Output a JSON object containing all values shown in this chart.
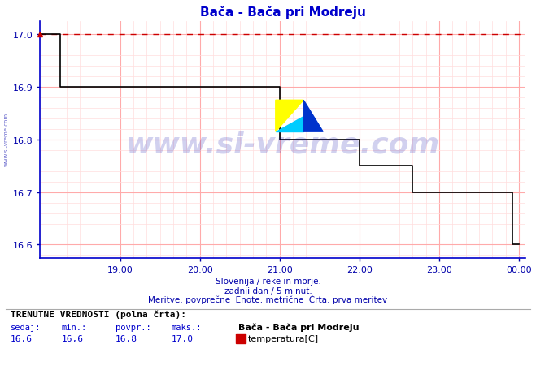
{
  "title": "Bača - Bača pri Modreju",
  "line_color": "#000000",
  "dashed_line_color": "#cc0000",
  "dashed_line_y": 17.0,
  "bg_color": "#ffffff",
  "plot_bg_color": "#ffffff",
  "grid_color_major": "#ffaaaa",
  "grid_color_minor": "#ffdddd",
  "axis_color": "#0000cc",
  "tick_color": "#0000aa",
  "ylim": [
    16.575,
    17.025
  ],
  "yticks": [
    16.6,
    16.7,
    16.8,
    16.9,
    17.0
  ],
  "xtick_labels": [
    "19:00",
    "20:00",
    "21:00",
    "22:00",
    "23:00",
    "00:00"
  ],
  "footer_line1": "Slovenija / reke in morje.",
  "footer_line2": "zadnji dan / 5 minut.",
  "footer_line3": "Meritve: povprečne  Enote: metrične  Črta: prva meritev",
  "footer_color": "#0000aa",
  "label_title": "TRENUTNE VREDNOSTI (polna črta):",
  "label_headers": [
    "sedaj:",
    "min.:",
    "povpr.:",
    "maks.:"
  ],
  "label_values": [
    "16,6",
    "16,6",
    "16,8",
    "17,0"
  ],
  "legend_station": "Bača - Bača pri Modreju",
  "legend_label": "temperatura[C]",
  "legend_color": "#cc0000",
  "watermark": "www.si-vreme.com",
  "watermark_color": "#0000aa",
  "watermark_alpha": 0.18,
  "side_watermark": "www.si-vreme.com",
  "time_x": [
    18.0,
    18.0833,
    18.1667,
    18.25,
    18.3333,
    18.4167,
    18.5,
    18.5833,
    18.6667,
    18.75,
    18.8333,
    18.9167,
    19.0,
    19.0833,
    19.1667,
    19.25,
    19.3333,
    19.4167,
    19.5,
    19.5833,
    19.6667,
    19.75,
    19.8333,
    19.9167,
    20.0,
    20.0833,
    20.1667,
    20.25,
    20.3333,
    20.4167,
    20.5,
    20.5833,
    20.6667,
    20.75,
    20.8333,
    20.9167,
    21.0,
    21.0833,
    21.1667,
    21.25,
    21.3333,
    21.4167,
    21.5,
    21.5833,
    21.6667,
    21.75,
    21.8333,
    21.9167,
    22.0,
    22.0833,
    22.1667,
    22.25,
    22.3333,
    22.4167,
    22.5,
    22.5833,
    22.6667,
    22.75,
    22.8333,
    22.9167,
    23.0,
    23.0833,
    23.9167,
    24.0
  ],
  "temp_y": [
    17.0,
    17.0,
    17.0,
    16.9,
    16.9,
    16.9,
    16.9,
    16.9,
    16.9,
    16.9,
    16.9,
    16.9,
    16.9,
    16.9,
    16.9,
    16.9,
    16.9,
    16.9,
    16.9,
    16.9,
    16.9,
    16.9,
    16.9,
    16.9,
    16.9,
    16.9,
    16.9,
    16.9,
    16.9,
    16.9,
    16.9,
    16.9,
    16.9,
    16.9,
    16.9,
    16.9,
    16.8,
    16.8,
    16.8,
    16.8,
    16.8,
    16.8,
    16.8,
    16.8,
    16.8,
    16.8,
    16.8,
    16.8,
    16.75,
    16.75,
    16.75,
    16.75,
    16.75,
    16.75,
    16.75,
    16.75,
    16.7,
    16.7,
    16.7,
    16.7,
    16.7,
    16.7,
    16.6,
    16.6
  ],
  "xlim_start": 18.0,
  "xlim_end": 24.08,
  "xtick_positions": [
    19.0,
    20.0,
    21.0,
    22.0,
    23.0,
    24.0
  ]
}
